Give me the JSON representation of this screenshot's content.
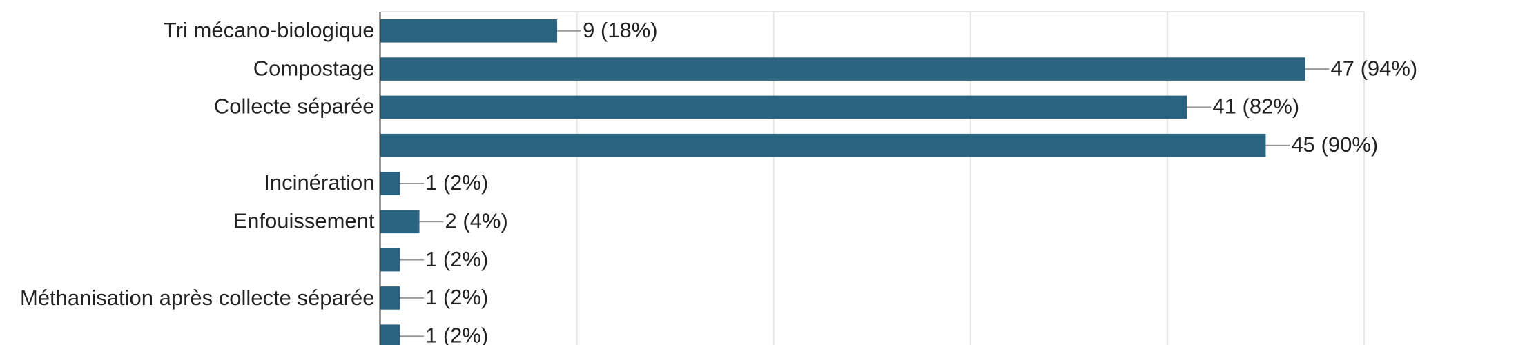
{
  "chart_data": {
    "type": "barh",
    "categories": [
      "Tri mécano-biologique",
      "Compostage",
      "Collecte séparée",
      null,
      "Incinération",
      "Enfouissement",
      null,
      "Méthanisation après collecte séparée",
      null
    ],
    "values": [
      9,
      47,
      41,
      45,
      1,
      2,
      1,
      1,
      1
    ],
    "value_labels": [
      "9 (18%)",
      "47 (94%)",
      "41 (82%)",
      "45 (90%)",
      "1 (2%)",
      "2 (4%)",
      "1 (2%)",
      "1 (2%)",
      "1 (2%)"
    ],
    "color": "#2a6480",
    "xlim": [
      0,
      50
    ],
    "xticks": [
      0,
      10,
      20,
      30,
      40,
      50
    ],
    "grid": true
  }
}
